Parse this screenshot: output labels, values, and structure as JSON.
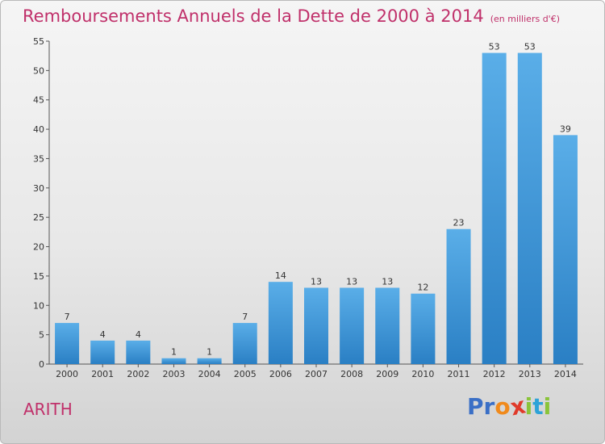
{
  "header": {
    "title": "Remboursements Annuels de la Dette de 2000 à 2014",
    "subtitle": "(en milliers d'€)"
  },
  "footer": {
    "commune": "ARITH",
    "logo_text": "Proxiti"
  },
  "colors": {
    "title": "#c0306a",
    "bar_top": "#5aaee8",
    "bar_bottom": "#2a7fc4",
    "logo_letters": [
      "#3a6fc6",
      "#3a6fc6",
      "#f08a1c",
      "#e03a2a",
      "#8ac43a",
      "#2ea3d8",
      "#8ac43a"
    ]
  },
  "chart_data": {
    "type": "bar",
    "title": "Remboursements Annuels de la Dette de 2000 à 2014",
    "subtitle": "(en milliers d'€)",
    "xlabel": "",
    "ylabel": "",
    "categories": [
      "2000",
      "2001",
      "2002",
      "2003",
      "2004",
      "2005",
      "2006",
      "2007",
      "2008",
      "2009",
      "2010",
      "2011",
      "2012",
      "2013",
      "2014"
    ],
    "values": [
      7,
      4,
      4,
      1,
      1,
      7,
      14,
      13,
      13,
      13,
      12,
      23,
      53,
      53,
      39
    ],
    "value_labels": [
      "7",
      "4",
      "4",
      "1",
      "1",
      "7",
      "14",
      "13",
      "13",
      "13",
      "12",
      "23",
      "53",
      "53",
      "39"
    ],
    "ylim": [
      0,
      55
    ],
    "yticks": [
      0,
      5,
      10,
      15,
      20,
      25,
      30,
      35,
      40,
      45,
      50,
      55
    ],
    "ytick_labels": [
      "0",
      "5",
      "10",
      "15",
      "20",
      "25",
      "30",
      "35",
      "40",
      "45",
      "50",
      "55"
    ],
    "grid": false,
    "legend": "none"
  }
}
